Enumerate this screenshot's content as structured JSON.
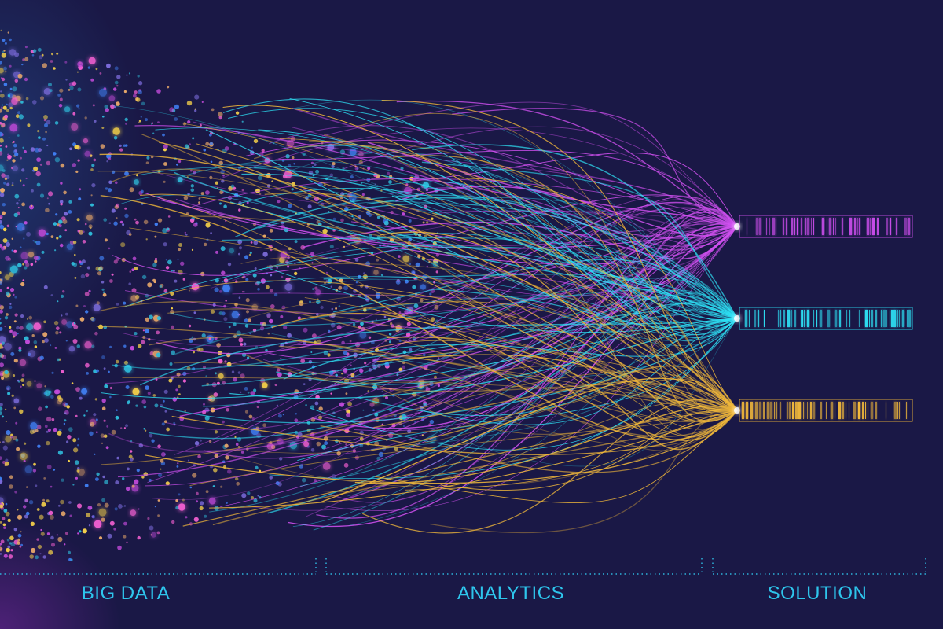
{
  "sections": {
    "big_data": "BIG DATA",
    "analytics": "ANALYTICS",
    "solution": "SOLUTION"
  },
  "colors": {
    "background": "#1a1846",
    "label": "#2ec5ec",
    "stream_magenta": "#d050f0",
    "stream_cyan": "#2ee0f4",
    "stream_gold": "#f2b93a",
    "divider": "#2ec5ec"
  },
  "particle_palette": [
    "#2fb9d8",
    "#c04ad8",
    "#e8a86a",
    "#3f7df0",
    "#f05fd0",
    "#f6d24a",
    "#7a6ad8"
  ]
}
